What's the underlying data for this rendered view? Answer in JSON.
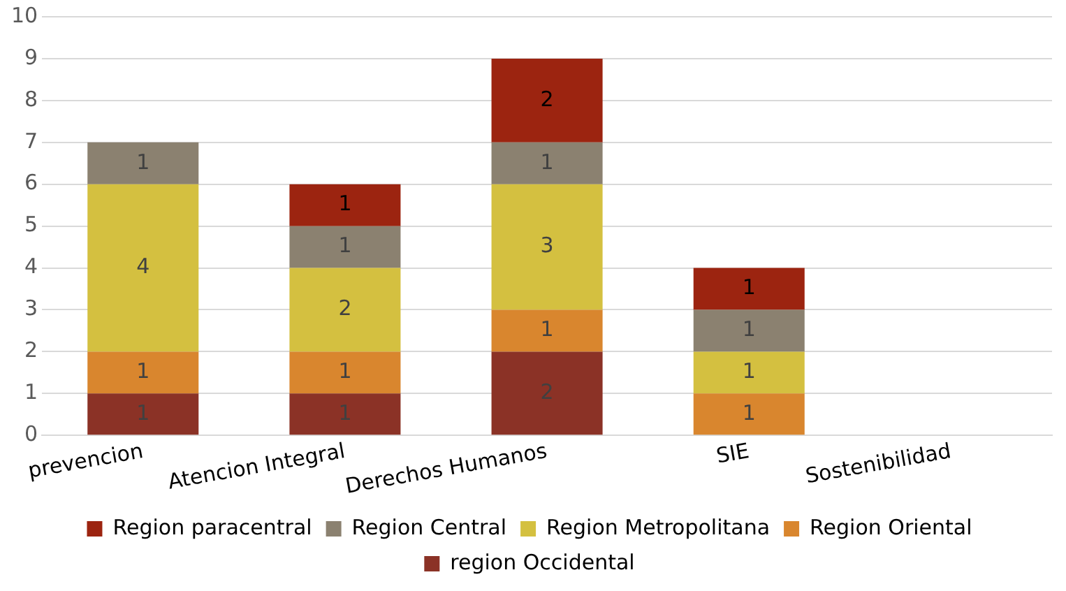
{
  "chart_data": {
    "type": "bar",
    "stacked": true,
    "categories": [
      "prevencion",
      "Atencion Integral",
      "Derechos Humanos",
      "SIE",
      "Sostenibilidad"
    ],
    "series": [
      {
        "name": "region Occidental",
        "color": "#8b3226",
        "values": [
          1,
          1,
          2,
          null,
          null
        ]
      },
      {
        "name": "Region Oriental",
        "color": "#d9862e",
        "values": [
          1,
          1,
          1,
          1,
          null
        ]
      },
      {
        "name": "Region Metropolitana",
        "color": "#d4c040",
        "values": [
          4,
          2,
          3,
          1,
          null
        ]
      },
      {
        "name": "Region Central",
        "color": "#8b8170",
        "values": [
          1,
          1,
          1,
          1,
          null
        ]
      },
      {
        "name": "Region paracentral",
        "color": "#9c2410",
        "values": [
          null,
          1,
          2,
          1,
          null
        ]
      }
    ],
    "ylim": [
      0,
      10
    ],
    "yticks": [
      0,
      1,
      2,
      3,
      4,
      5,
      6,
      7,
      8,
      9,
      10
    ],
    "grid": "y",
    "legend": "bottom",
    "data_labels": true
  }
}
